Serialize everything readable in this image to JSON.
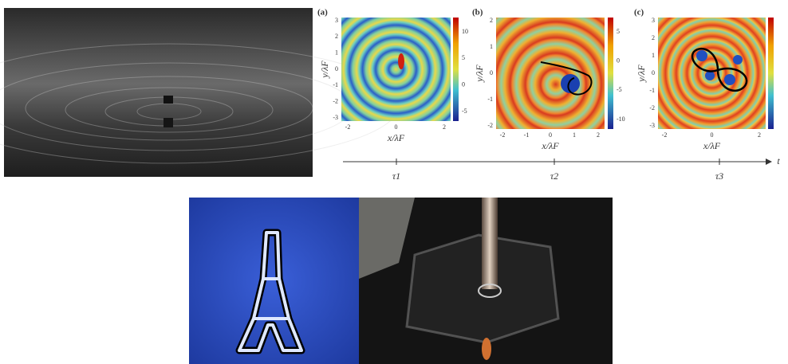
{
  "panels": [
    {
      "label": "(a)",
      "x_label": "x/λF",
      "y_label": "y/λF",
      "x_ticks": [
        "-2",
        "0",
        "2"
      ],
      "y_ticks": [
        "3",
        "2",
        "1",
        "0",
        "-1",
        "-2",
        "-3"
      ],
      "colorbar_ticks": [
        "10",
        "5",
        "0",
        "-5"
      ]
    },
    {
      "label": "(b)",
      "x_label": "x/λF",
      "y_label": "y/λF",
      "x_ticks": [
        "-2",
        "-1",
        "0",
        "1",
        "2"
      ],
      "y_ticks": [
        "2",
        "1",
        "0",
        "-1",
        "-2"
      ],
      "colorbar_ticks": [
        "5",
        "0",
        "-5",
        "-10"
      ]
    },
    {
      "label": "(c)",
      "x_label": "x/λF",
      "y_label": "y/λF",
      "x_ticks": [
        "-2",
        "0",
        "2"
      ],
      "y_ticks": [
        "3",
        "2",
        "1",
        "0",
        "-1",
        "-2",
        "-3"
      ]
    }
  ],
  "timeline": {
    "ticks": [
      "τ1",
      "τ2",
      "τ3"
    ],
    "axis_label": "t"
  }
}
